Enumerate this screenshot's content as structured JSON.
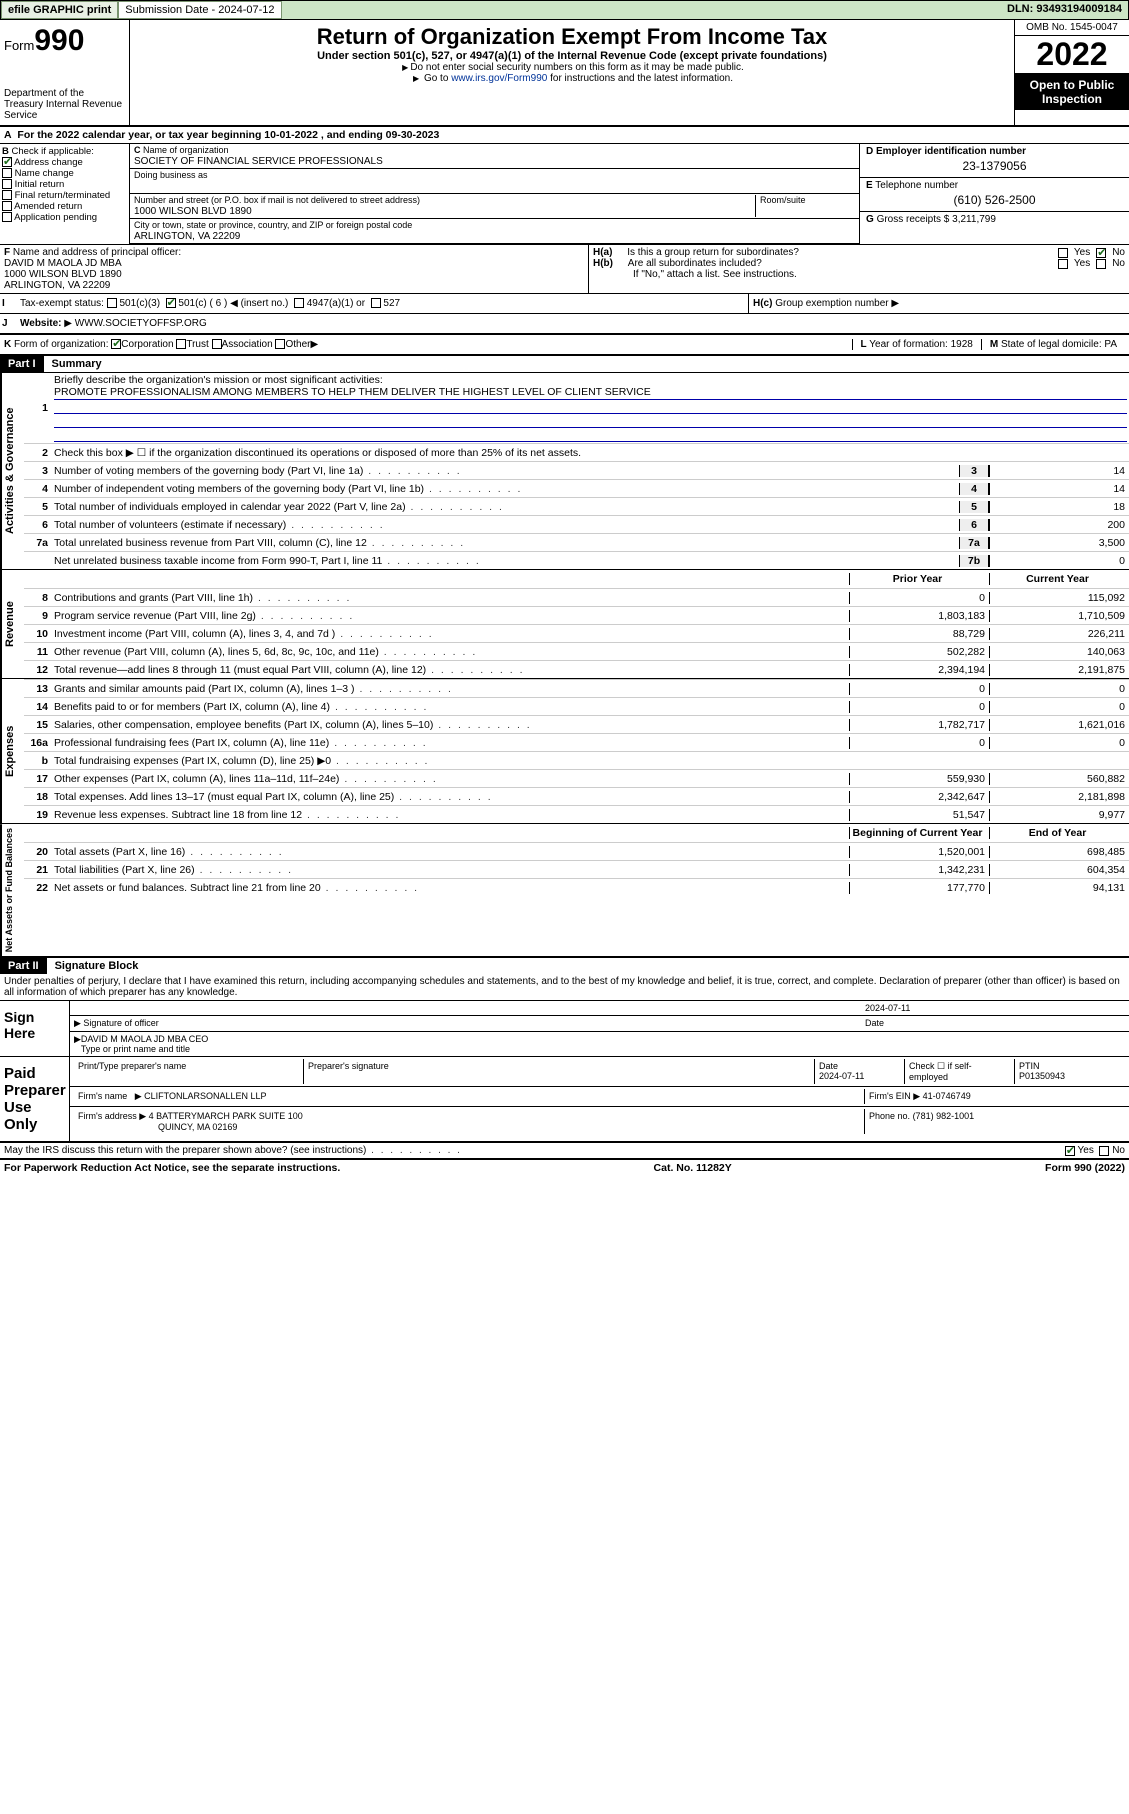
{
  "topbar": {
    "efile": "efile GRAPHIC print",
    "sub_lbl": "Submission Date - 2024-07-12",
    "dln": "DLN: 93493194009184"
  },
  "header": {
    "form_prefix": "Form",
    "form_num": "990",
    "dept": "Department of the Treasury Internal Revenue Service",
    "title": "Return of Organization Exempt From Income Tax",
    "subtitle": "Under section 501(c), 527, or 4947(a)(1) of the Internal Revenue Code (except private foundations)",
    "warn1": "Do not enter social security numbers on this form as it may be made public.",
    "warn2_a": "Go to ",
    "warn2_link": "www.irs.gov/Form990",
    "warn2_b": " for instructions and the latest information.",
    "omb": "OMB No. 1545-0047",
    "year": "2022",
    "inspect": "Open to Public Inspection"
  },
  "A": {
    "text": "For the 2022 calendar year, or tax year beginning 10-01-2022   , and ending 09-30-2023"
  },
  "B": {
    "label": "Check if applicable:",
    "opts": [
      "Address change",
      "Name change",
      "Initial return",
      "Final return/terminated",
      "Amended return",
      "Application pending"
    ],
    "checked_idx": 0
  },
  "C": {
    "name_lbl": "Name of organization",
    "name": "SOCIETY OF FINANCIAL SERVICE PROFESSIONALS",
    "dba_lbl": "Doing business as",
    "addr_lbl": "Number and street (or P.O. box if mail is not delivered to street address)",
    "room_lbl": "Room/suite",
    "addr": "1000 WILSON BLVD 1890",
    "city_lbl": "City or town, state or province, country, and ZIP or foreign postal code",
    "city": "ARLINGTON, VA  22209"
  },
  "D": {
    "lbl": "Employer identification number",
    "val": "23-1379056"
  },
  "E": {
    "lbl": "Telephone number",
    "val": "(610) 526-2500"
  },
  "G": {
    "lbl": "Gross receipts $",
    "val": "3,211,799"
  },
  "F": {
    "lbl": "Name and address of principal officer:",
    "name": "DAVID M MAOLA JD MBA",
    "addr1": "1000 WILSON BLVD 1890",
    "addr2": "ARLINGTON, VA  22209"
  },
  "H": {
    "a": "Is this a group return for subordinates?",
    "b": "Are all subordinates included?",
    "b_note": "If \"No,\" attach a list. See instructions.",
    "c": "Group exemption number",
    "yes": "Yes",
    "no": "No"
  },
  "I": {
    "lbl": "Tax-exempt status:",
    "o1": "501(c)(3)",
    "o2": "501(c) ( 6 )",
    "o2b": "(insert no.)",
    "o3": "4947(a)(1) or",
    "o4": "527"
  },
  "J": {
    "lbl": "Website:",
    "val": "WWW.SOCIETYOFFSP.ORG"
  },
  "K": {
    "lbl": "Form of organization:",
    "opts": [
      "Corporation",
      "Trust",
      "Association",
      "Other"
    ],
    "L_lbl": "Year of formation:",
    "L_val": "1928",
    "M_lbl": "State of legal domicile:",
    "M_val": "PA"
  },
  "part1": {
    "hdr": "Part I",
    "title": "Summary",
    "l1_lbl": "Briefly describe the organization's mission or most significant activities:",
    "l1_txt": "PROMOTE PROFESSIONALISM AMONG MEMBERS TO HELP THEM DELIVER THE HIGHEST LEVEL OF CLIENT SERVICE",
    "l2": "Check this box ▶ ☐  if the organization discontinued its operations or disposed of more than 25% of its net assets.",
    "governance": [
      {
        "n": "3",
        "t": "Number of voting members of the governing body (Part VI, line 1a)",
        "b": "3",
        "v": "14"
      },
      {
        "n": "4",
        "t": "Number of independent voting members of the governing body (Part VI, line 1b)",
        "b": "4",
        "v": "14"
      },
      {
        "n": "5",
        "t": "Total number of individuals employed in calendar year 2022 (Part V, line 2a)",
        "b": "5",
        "v": "18"
      },
      {
        "n": "6",
        "t": "Total number of volunteers (estimate if necessary)",
        "b": "6",
        "v": "200"
      },
      {
        "n": "7a",
        "t": "Total unrelated business revenue from Part VIII, column (C), line 12",
        "b": "7a",
        "v": "3,500"
      },
      {
        "n": "",
        "t": "Net unrelated business taxable income from Form 990-T, Part I, line 11",
        "b": "7b",
        "v": "0"
      }
    ],
    "py_hdr": "Prior Year",
    "cy_hdr": "Current Year",
    "revenue": [
      {
        "n": "8",
        "t": "Contributions and grants (Part VIII, line 1h)",
        "p": "0",
        "c": "115,092"
      },
      {
        "n": "9",
        "t": "Program service revenue (Part VIII, line 2g)",
        "p": "1,803,183",
        "c": "1,710,509"
      },
      {
        "n": "10",
        "t": "Investment income (Part VIII, column (A), lines 3, 4, and 7d )",
        "p": "88,729",
        "c": "226,211"
      },
      {
        "n": "11",
        "t": "Other revenue (Part VIII, column (A), lines 5, 6d, 8c, 9c, 10c, and 11e)",
        "p": "502,282",
        "c": "140,063"
      },
      {
        "n": "12",
        "t": "Total revenue—add lines 8 through 11 (must equal Part VIII, column (A), line 12)",
        "p": "2,394,194",
        "c": "2,191,875"
      }
    ],
    "expenses": [
      {
        "n": "13",
        "t": "Grants and similar amounts paid (Part IX, column (A), lines 1–3 )",
        "p": "0",
        "c": "0"
      },
      {
        "n": "14",
        "t": "Benefits paid to or for members (Part IX, column (A), line 4)",
        "p": "0",
        "c": "0"
      },
      {
        "n": "15",
        "t": "Salaries, other compensation, employee benefits (Part IX, column (A), lines 5–10)",
        "p": "1,782,717",
        "c": "1,621,016"
      },
      {
        "n": "16a",
        "t": "Professional fundraising fees (Part IX, column (A), line 11e)",
        "p": "0",
        "c": "0"
      },
      {
        "n": "b",
        "t": "Total fundraising expenses (Part IX, column (D), line 25) ▶0",
        "p": "",
        "c": ""
      },
      {
        "n": "17",
        "t": "Other expenses (Part IX, column (A), lines 11a–11d, 11f–24e)",
        "p": "559,930",
        "c": "560,882"
      },
      {
        "n": "18",
        "t": "Total expenses. Add lines 13–17 (must equal Part IX, column (A), line 25)",
        "p": "2,342,647",
        "c": "2,181,898"
      },
      {
        "n": "19",
        "t": "Revenue less expenses. Subtract line 18 from line 12",
        "p": "51,547",
        "c": "9,977"
      }
    ],
    "boy_hdr": "Beginning of Current Year",
    "eoy_hdr": "End of Year",
    "netassets": [
      {
        "n": "20",
        "t": "Total assets (Part X, line 16)",
        "p": "1,520,001",
        "c": "698,485"
      },
      {
        "n": "21",
        "t": "Total liabilities (Part X, line 26)",
        "p": "1,342,231",
        "c": "604,354"
      },
      {
        "n": "22",
        "t": "Net assets or fund balances. Subtract line 21 from line 20",
        "p": "177,770",
        "c": "94,131"
      }
    ],
    "side_gov": "Activities & Governance",
    "side_rev": "Revenue",
    "side_exp": "Expenses",
    "side_net": "Net Assets or Fund Balances"
  },
  "part2": {
    "hdr": "Part II",
    "title": "Signature Block",
    "intro": "Under penalties of perjury, I declare that I have examined this return, including accompanying schedules and statements, and to the best of my knowledge and belief, it is true, correct, and complete. Declaration of preparer (other than officer) is based on all information of which preparer has any knowledge.",
    "sign_here": "Sign Here",
    "sig_of_officer": "Signature of officer",
    "sig_date": "2024-07-11",
    "date_lbl": "Date",
    "officer_name": "DAVID M MAOLA JD MBA  CEO",
    "officer_lbl": "Type or print name and title",
    "paid": "Paid Preparer Use Only",
    "prep_name_lbl": "Print/Type preparer's name",
    "prep_sig_lbl": "Preparer's signature",
    "prep_date_lbl": "Date",
    "prep_date": "2024-07-11",
    "self_emp": "Check ☐ if self-employed",
    "ptin_lbl": "PTIN",
    "ptin": "P01350943",
    "firm_name_lbl": "Firm's name",
    "firm_name": "CLIFTONLARSONALLEN LLP",
    "firm_ein_lbl": "Firm's EIN",
    "firm_ein": "41-0746749",
    "firm_addr_lbl": "Firm's address",
    "firm_addr1": "4 BATTERYMARCH PARK SUITE 100",
    "firm_addr2": "QUINCY, MA  02169",
    "phone_lbl": "Phone no.",
    "phone": "(781) 982-1001",
    "discuss": "May the IRS discuss this return with the preparer shown above? (see instructions)",
    "yes": "Yes",
    "no": "No"
  },
  "footer": {
    "pra": "For Paperwork Reduction Act Notice, see the separate instructions.",
    "cat": "Cat. No. 11282Y",
    "form": "Form 990 (2022)"
  }
}
